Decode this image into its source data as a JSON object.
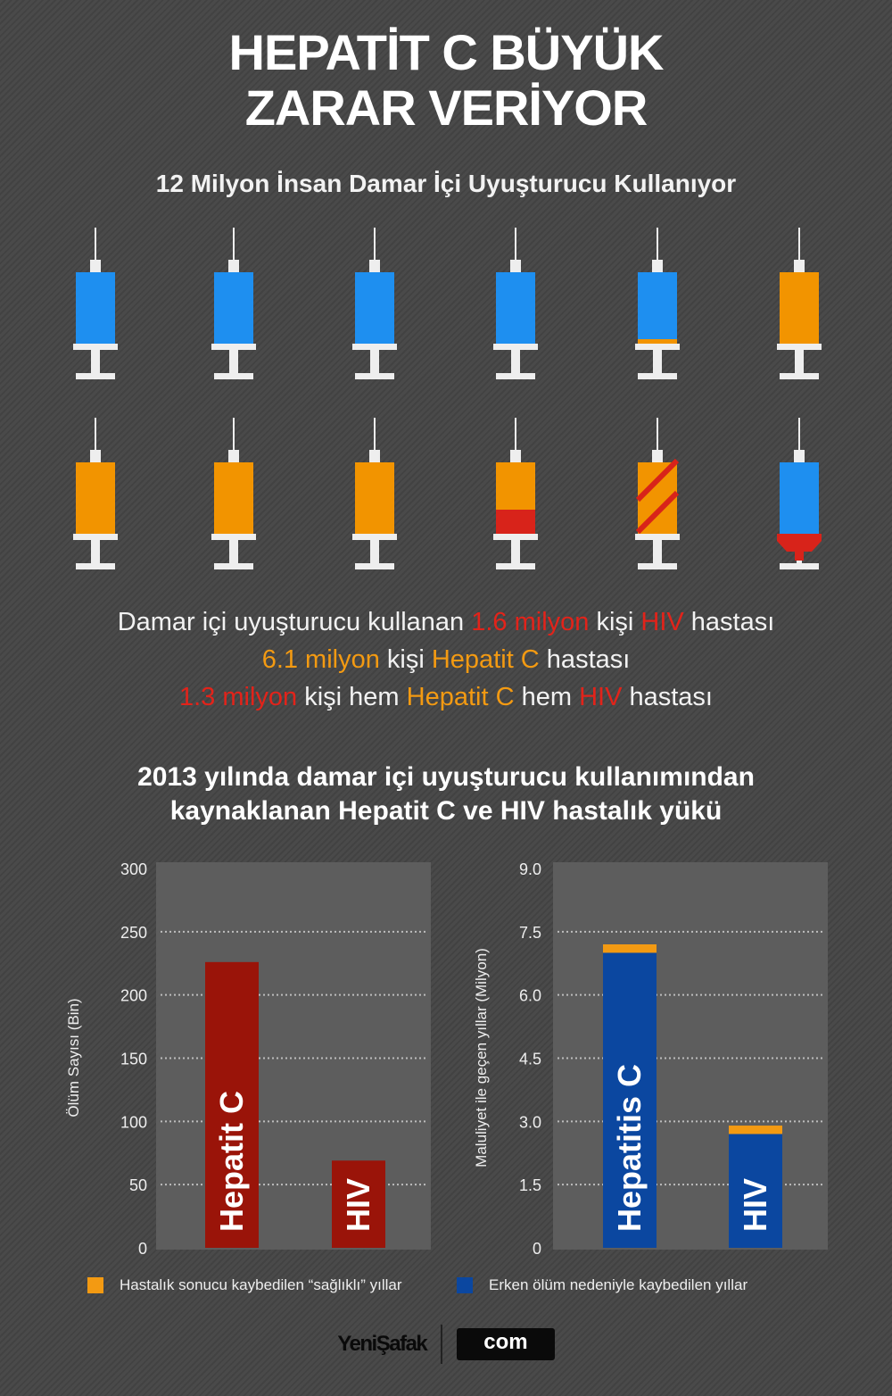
{
  "title_line1": "HEPATİT C BÜYÜK",
  "title_line2": "ZARAR VERİYOR",
  "subtitle": "12 Milyon İnsan Damar İçi Uyuşturucu Kullanıyor",
  "syringes": [
    "blue",
    "blue",
    "blue",
    "blue",
    "blue-orange-bottom",
    "orange",
    "orange",
    "orange",
    "orange",
    "orange-red-bottom",
    "orange-red-stripes",
    "blue-red-plunger"
  ],
  "colors": {
    "blue": "#1e8ff0",
    "orange": "#f29400",
    "red": "#d8231a",
    "white": "#eeeeee",
    "bar_red": "#9a1409",
    "bar_blue": "#0b47a0",
    "bar_orange": "#f39a12"
  },
  "stats": {
    "l1": [
      "Damar içi uyuşturucu kullanan ",
      "1.6 milyon",
      " kişi ",
      "HIV",
      " hastası"
    ],
    "l2": [
      "6.1 milyon",
      " kişi ",
      "Hepatit C",
      " hastası"
    ],
    "l3": [
      "1.3 milyon",
      " kişi hem ",
      "Hepatit C",
      " hem ",
      "HIV",
      " hastası"
    ]
  },
  "chart_title_1": "2013 yılında damar içi uyuşturucu kullanımından",
  "chart_title_2": "kaynaklanan Hepatit C ve HIV hastalık yükü",
  "chart_data": [
    {
      "type": "bar",
      "ylabel": "Ölüm Sayısı (Bin)",
      "ylim": [
        0,
        300
      ],
      "yticks": [
        "0",
        "50",
        "100",
        "150",
        "200",
        "250",
        "300"
      ],
      "ytick_values": [
        0,
        50,
        100,
        150,
        200,
        250,
        300
      ],
      "categories": [
        "Hepatit C",
        "HIV"
      ],
      "values": [
        226,
        69
      ],
      "grid": true
    },
    {
      "type": "bar",
      "stacked": true,
      "ylabel": "Maluliyet ile geçen yıllar (Milyon)",
      "ylim": [
        0,
        9
      ],
      "yticks": [
        "0",
        "1.5",
        "3.0",
        "4.5",
        "6.0",
        "7.5",
        "9.0"
      ],
      "ytick_values": [
        0,
        1.5,
        3,
        4.5,
        6,
        7.5,
        9
      ],
      "categories": [
        "Hepatitis C",
        "HIV"
      ],
      "series": [
        {
          "name": "Erken ölüm nedeniyle kaybedilen yıllar",
          "values": [
            7.0,
            2.7
          ]
        },
        {
          "name": "Hastalık sonucu kaybedilen “sağlıklı” yıllar",
          "values": [
            0.2,
            0.2
          ]
        }
      ],
      "grid": true
    }
  ],
  "legend": {
    "orange": "Hastalık sonucu kaybedilen “sağlıklı” yıllar",
    "blue": "Erken ölüm nedeniyle kaybedilen yıllar"
  },
  "footer": {
    "logo": "YeniŞafak",
    "com": "com"
  }
}
